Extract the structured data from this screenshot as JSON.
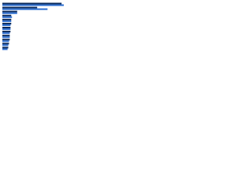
{
  "chart_data": {
    "type": "hbar",
    "categories": [
      null,
      null,
      null,
      null,
      null,
      null,
      null,
      null,
      null,
      null,
      null,
      null
    ],
    "series": [
      {
        "color": "#0b2a5b",
        "values": [
          80,
          47,
          20,
          12,
          12,
          12,
          11,
          11,
          10,
          10,
          9,
          8
        ]
      },
      {
        "color": "#2e6fd1",
        "values": [
          83,
          61,
          20,
          13,
          12,
          11,
          11,
          10,
          10,
          9,
          8,
          7
        ]
      }
    ],
    "xlim": [
      0,
      100
    ]
  }
}
